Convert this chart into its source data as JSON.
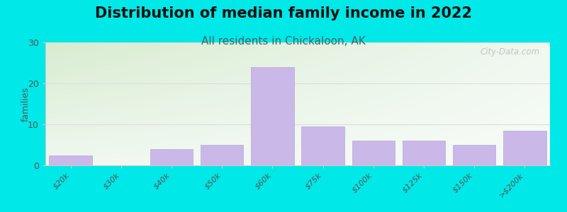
{
  "title": "Distribution of median family income in 2022",
  "subtitle": "All residents in Chickaloon, AK",
  "categories": [
    "$20k",
    "$30k",
    "$40k",
    "$50k",
    "$60k",
    "$75k",
    "$100k",
    "$125k",
    "$150k",
    ">$200k"
  ],
  "values": [
    2.5,
    0,
    4,
    5,
    24,
    9.5,
    6,
    6,
    5,
    8.5
  ],
  "bar_color": "#c9b8e8",
  "bar_edge_color": "#b8a8d8",
  "ylim": [
    0,
    30
  ],
  "yticks": [
    0,
    10,
    20,
    30
  ],
  "ylabel": "families",
  "background_outer": "#00e8e8",
  "bg_color_topleft": "#d8ecd0",
  "bg_color_topright": "#e8f4e8",
  "bg_color_bottom": "#f2f8f2",
  "bg_color_white": "#f8fbf8",
  "title_fontsize": 15,
  "subtitle_fontsize": 11,
  "subtitle_color": "#446666",
  "watermark": "City-Data.com",
  "grid_color": "#dddddd"
}
